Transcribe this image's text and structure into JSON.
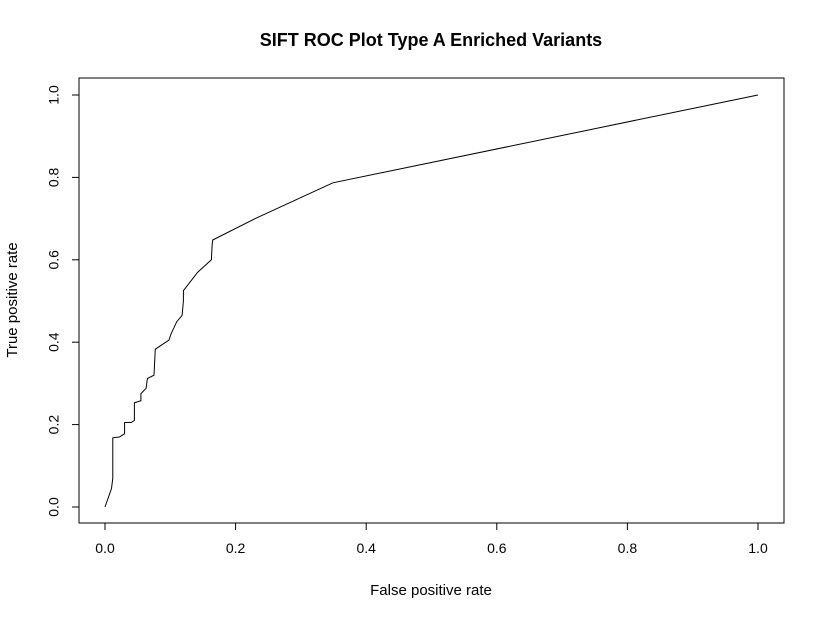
{
  "chart_data": {
    "type": "line",
    "title": "SIFT ROC Plot Type A Enriched Variants",
    "xlabel": "False positive rate",
    "ylabel": "True positive rate",
    "xlim": [
      0,
      1
    ],
    "ylim": [
      0,
      1
    ],
    "x_ticks": [
      "0.0",
      "0.2",
      "0.4",
      "0.6",
      "0.8",
      "1.0"
    ],
    "y_ticks": [
      "0.0",
      "0.2",
      "0.4",
      "0.6",
      "0.8",
      "1.0"
    ],
    "grid": false,
    "series": [
      {
        "x": [
          0.0,
          0.01,
          0.012,
          0.012,
          0.022,
          0.03,
          0.03,
          0.04,
          0.045,
          0.045,
          0.055,
          0.055,
          0.063,
          0.065,
          0.075,
          0.076,
          0.077,
          0.098,
          0.101,
          0.11,
          0.118,
          0.12,
          0.12,
          0.142,
          0.163,
          0.164,
          0.165,
          0.23,
          0.349,
          1.0
        ],
        "y": [
          0.0,
          0.045,
          0.07,
          0.168,
          0.17,
          0.178,
          0.205,
          0.205,
          0.21,
          0.253,
          0.258,
          0.275,
          0.288,
          0.312,
          0.32,
          0.35,
          0.383,
          0.405,
          0.42,
          0.45,
          0.465,
          0.5,
          0.525,
          0.57,
          0.6,
          0.635,
          0.648,
          0.7,
          0.787,
          1.0
        ]
      }
    ]
  }
}
